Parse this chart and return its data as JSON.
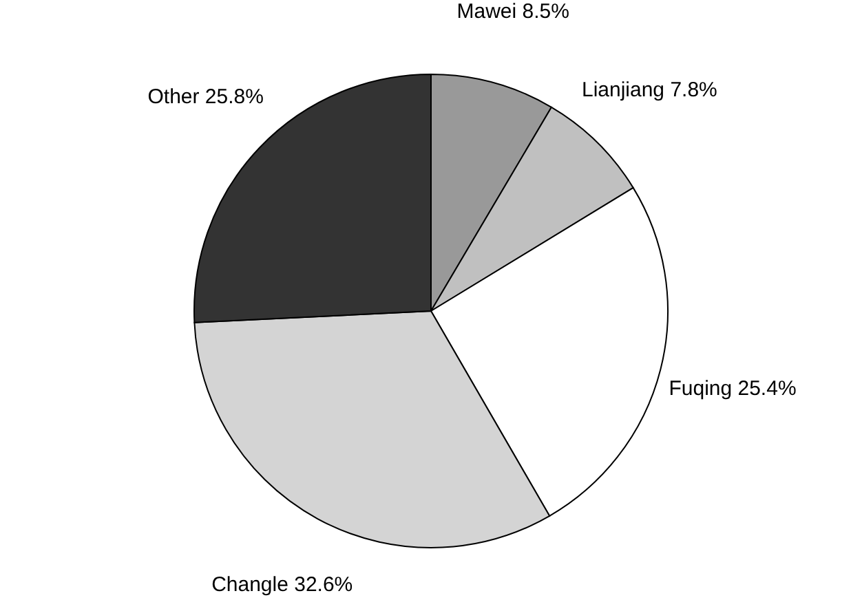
{
  "chart_data": {
    "type": "pie",
    "categories": [
      "Mawei",
      "Lianjiang",
      "Fuqing",
      "Changle",
      "Other"
    ],
    "values": [
      8.5,
      7.8,
      25.4,
      32.6,
      25.8
    ],
    "value_labels": [
      "8.5%",
      "7.8%",
      "25.4%",
      "32.6%",
      "25.8%"
    ],
    "colors": [
      "#999999",
      "#c0c0c0",
      "#ffffff",
      "#d4d4d4",
      "#333333"
    ],
    "legend": false
  }
}
